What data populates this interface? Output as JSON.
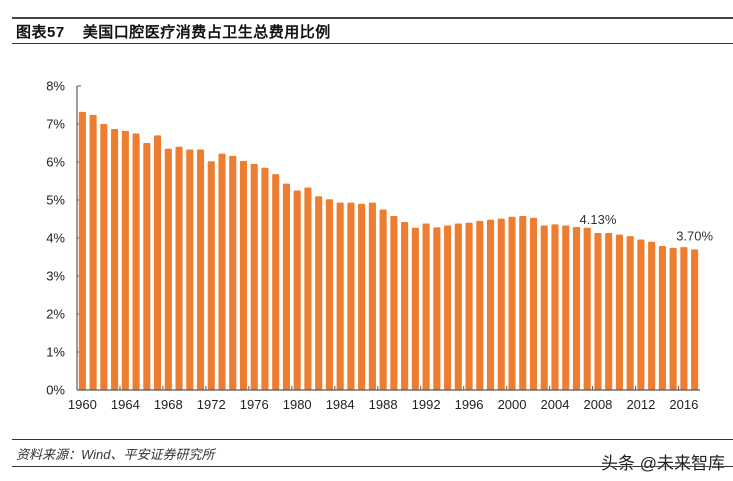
{
  "header": {
    "figure_number": "图表57",
    "title": "美国口腔医疗消费占卫生总费用比例"
  },
  "footer": {
    "source": "资料来源：Wind、平安证券研究所",
    "watermark": "头条 @未来智库"
  },
  "colors": {
    "bar": "#ED7D31",
    "axis": "#595959",
    "text": "#222222"
  },
  "chart_data": {
    "type": "bar",
    "title": "美国口腔医疗消费占卫生总费用比例",
    "xlabel": "",
    "ylabel": "",
    "ylim": [
      0,
      8
    ],
    "yticks": [
      "0%",
      "1%",
      "2%",
      "3%",
      "4%",
      "5%",
      "6%",
      "7%",
      "8%"
    ],
    "xticks": [
      "1960",
      "1964",
      "1968",
      "1972",
      "1976",
      "1980",
      "1984",
      "1988",
      "1992",
      "1996",
      "2000",
      "2004",
      "2008",
      "2012",
      "2016"
    ],
    "grid": false,
    "legend": null,
    "unit": "%",
    "categories": [
      1960,
      1961,
      1962,
      1963,
      1964,
      1965,
      1966,
      1967,
      1968,
      1969,
      1970,
      1971,
      1972,
      1973,
      1974,
      1975,
      1976,
      1977,
      1978,
      1979,
      1980,
      1981,
      1982,
      1983,
      1984,
      1985,
      1986,
      1987,
      1988,
      1989,
      1990,
      1991,
      1992,
      1993,
      1994,
      1995,
      1996,
      1997,
      1998,
      1999,
      2000,
      2001,
      2002,
      2003,
      2004,
      2005,
      2006,
      2007,
      2008,
      2009,
      2010,
      2011,
      2012,
      2013,
      2014,
      2015,
      2016,
      2017
    ],
    "values": [
      7.32,
      7.24,
      7.0,
      6.87,
      6.82,
      6.75,
      6.5,
      6.7,
      6.35,
      6.4,
      6.33,
      6.33,
      6.02,
      6.22,
      6.16,
      6.03,
      5.95,
      5.85,
      5.68,
      5.43,
      5.25,
      5.33,
      5.1,
      5.02,
      4.93,
      4.93,
      4.9,
      4.93,
      4.75,
      4.58,
      4.42,
      4.27,
      4.38,
      4.28,
      4.33,
      4.38,
      4.4,
      4.45,
      4.48,
      4.51,
      4.56,
      4.58,
      4.53,
      4.33,
      4.36,
      4.33,
      4.29,
      4.27,
      4.13,
      4.13,
      4.09,
      4.05,
      3.96,
      3.9,
      3.79,
      3.74,
      3.76,
      3.7
    ],
    "annotations": [
      {
        "category": 2008,
        "label": "4.13%"
      },
      {
        "category": 2017,
        "label": "3.70%"
      }
    ]
  }
}
